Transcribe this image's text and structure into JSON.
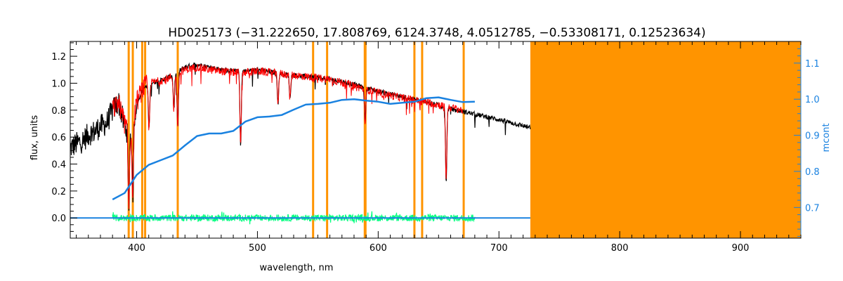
{
  "chart_data": {
    "type": "line",
    "title": "HD025173   (−31.222650, 17.808769, 6124.3748, 4.0512785, −0.53308171, 0.12523634)",
    "xlabel": "wavelength, nm",
    "ylabel": "flux, units",
    "ylabel_right": "mcont",
    "xlim": [
      345,
      950
    ],
    "ylim": [
      -0.15,
      1.31
    ],
    "ylim_right": [
      0.615,
      1.16
    ],
    "x_ticks": [
      400,
      500,
      600,
      700,
      800,
      900
    ],
    "y_ticks": [
      0.0,
      0.2,
      0.4,
      0.6,
      0.8,
      1.0,
      1.2
    ],
    "y_ticks_right": [
      0.7,
      0.8,
      0.9,
      1.0,
      1.1
    ],
    "masked_region": {
      "from": 726,
      "to": 950,
      "color": "#ff9400"
    },
    "vertical_lines": {
      "color": "#ff9400",
      "x": [
        393.4,
        396.8,
        404.6,
        407.0,
        434.0,
        546.1,
        557.7,
        588.9,
        589.5,
        630.0,
        636.4,
        670.8
      ]
    },
    "series": [
      {
        "role": "observed",
        "color": "#000000",
        "x": [
          345,
          350,
          355,
          360,
          365,
          370,
          375,
          380,
          385,
          390,
          395,
          400,
          405,
          410,
          420,
          430,
          440,
          450,
          460,
          470,
          480,
          490,
          500,
          520,
          540,
          560,
          580,
          600,
          620,
          640,
          660,
          680,
          700,
          726
        ],
        "y": [
          0.52,
          0.55,
          0.57,
          0.62,
          0.64,
          0.68,
          0.7,
          0.8,
          0.86,
          0.68,
          0.62,
          0.85,
          0.95,
          1.0,
          1.02,
          1.06,
          1.12,
          1.14,
          1.12,
          1.1,
          1.09,
          1.09,
          1.1,
          1.07,
          1.05,
          1.03,
          0.99,
          0.94,
          0.9,
          0.86,
          0.81,
          0.77,
          0.73,
          0.67
        ]
      },
      {
        "role": "model",
        "color": "#ff0000",
        "x": [
          380,
          385,
          390,
          395,
          400,
          405,
          410,
          420,
          430,
          440,
          450,
          460,
          470,
          480,
          490,
          500,
          520,
          540,
          560,
          580,
          600,
          620,
          640,
          660,
          670
        ],
        "y": [
          0.8,
          0.86,
          0.7,
          0.6,
          0.86,
          0.96,
          1.0,
          1.02,
          1.05,
          1.1,
          1.12,
          1.1,
          1.09,
          1.08,
          1.08,
          1.09,
          1.07,
          1.05,
          1.03,
          0.98,
          0.93,
          0.89,
          0.86,
          0.82,
          0.8
        ]
      },
      {
        "role": "residuals",
        "color": "#00ff7f",
        "x": [
          380,
          680
        ],
        "y": [
          0.0,
          0.0
        ],
        "scatter": 0.025
      },
      {
        "role": "zero-line",
        "color": "#1a82e0",
        "x": [
          345,
          726
        ],
        "y": [
          0.0,
          0.0
        ]
      },
      {
        "role": "mcont",
        "color": "#1a82e0",
        "axis": "right",
        "x": [
          380,
          390,
          400,
          410,
          420,
          430,
          440,
          450,
          460,
          470,
          480,
          490,
          500,
          510,
          520,
          530,
          540,
          550,
          560,
          570,
          580,
          590,
          600,
          610,
          620,
          630,
          640,
          650,
          660,
          670,
          680
        ],
        "y": [
          0.722,
          0.74,
          0.79,
          0.818,
          0.831,
          0.844,
          0.872,
          0.898,
          0.905,
          0.905,
          0.912,
          0.938,
          0.95,
          0.952,
          0.956,
          0.971,
          0.985,
          0.987,
          0.99,
          0.998,
          1.0,
          0.996,
          0.993,
          0.987,
          0.99,
          0.993,
          1.003,
          1.005,
          0.998,
          0.992,
          0.993
        ]
      }
    ],
    "absorption_lines": [
      {
        "x": 393.4,
        "depth": 0.55
      },
      {
        "x": 396.8,
        "depth": 0.55
      },
      {
        "x": 410.2,
        "depth": 0.35
      },
      {
        "x": 430.8,
        "depth": 0.25
      },
      {
        "x": 434.0,
        "depth": 0.4
      },
      {
        "x": 486.1,
        "depth": 0.55
      },
      {
        "x": 517.0,
        "depth": 0.22
      },
      {
        "x": 527.0,
        "depth": 0.18
      },
      {
        "x": 589.2,
        "depth": 0.25
      },
      {
        "x": 656.3,
        "depth": 0.55
      }
    ]
  }
}
